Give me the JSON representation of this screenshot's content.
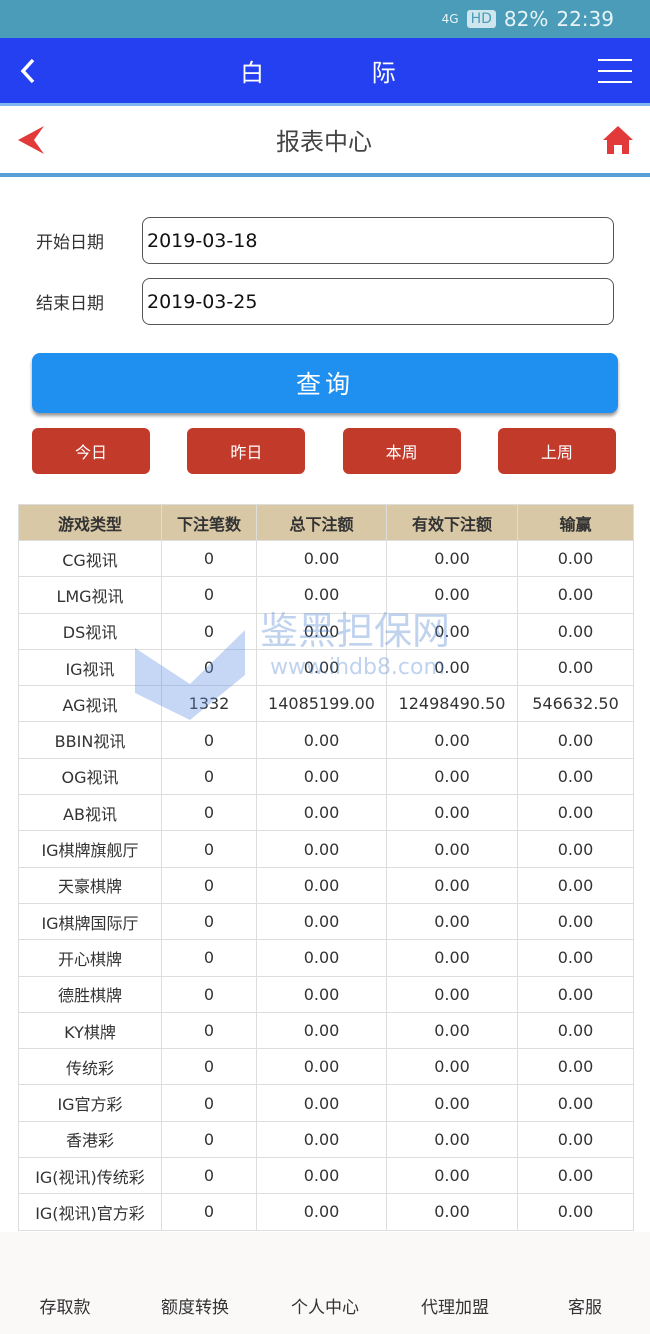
{
  "status": {
    "battery": "82%",
    "time": "22:39",
    "hd": "HD",
    "network": "4G"
  },
  "appbar": {
    "title": "白 际"
  },
  "subbar": {
    "title": "报表中心"
  },
  "form": {
    "start_label": "开始日期",
    "start_value": "2019-03-18",
    "end_label": "结束日期",
    "end_value": "2019-03-25",
    "query": "查询"
  },
  "quick": [
    "今日",
    "昨日",
    "本周",
    "上周"
  ],
  "table": {
    "headers": [
      "游戏类型",
      "下注笔数",
      "总下注额",
      "有效下注额",
      "输赢"
    ],
    "rows": [
      [
        "CG视讯",
        "0",
        "0.00",
        "0.00",
        "0.00"
      ],
      [
        "LMG视讯",
        "0",
        "0.00",
        "0.00",
        "0.00"
      ],
      [
        "DS视讯",
        "0",
        "0.00",
        "0.00",
        "0.00"
      ],
      [
        "IG视讯",
        "0",
        "0.00",
        "0.00",
        "0.00"
      ],
      [
        "AG视讯",
        "1332",
        "14085199.00",
        "12498490.50",
        "546632.50"
      ],
      [
        "BBIN视讯",
        "0",
        "0.00",
        "0.00",
        "0.00"
      ],
      [
        "OG视讯",
        "0",
        "0.00",
        "0.00",
        "0.00"
      ],
      [
        "AB视讯",
        "0",
        "0.00",
        "0.00",
        "0.00"
      ],
      [
        "IG棋牌旗舰厅",
        "0",
        "0.00",
        "0.00",
        "0.00"
      ],
      [
        "天豪棋牌",
        "0",
        "0.00",
        "0.00",
        "0.00"
      ],
      [
        "IG棋牌国际厅",
        "0",
        "0.00",
        "0.00",
        "0.00"
      ],
      [
        "开心棋牌",
        "0",
        "0.00",
        "0.00",
        "0.00"
      ],
      [
        "德胜棋牌",
        "0",
        "0.00",
        "0.00",
        "0.00"
      ],
      [
        "KY棋牌",
        "0",
        "0.00",
        "0.00",
        "0.00"
      ],
      [
        "传统彩",
        "0",
        "0.00",
        "0.00",
        "0.00"
      ],
      [
        "IG官方彩",
        "0",
        "0.00",
        "0.00",
        "0.00"
      ],
      [
        "香港彩",
        "0",
        "0.00",
        "0.00",
        "0.00"
      ],
      [
        "IG(视讯)传统彩",
        "0",
        "0.00",
        "0.00",
        "0.00"
      ],
      [
        "IG(视讯)官方彩",
        "0",
        "0.00",
        "0.00",
        "0.00"
      ]
    ]
  },
  "watermark": {
    "name": "鉴黑担保网",
    "url": "www.ihdb8.com"
  },
  "bottom_nav": [
    "存取款",
    "额度转换",
    "个人中心",
    "代理加盟",
    "客服"
  ]
}
